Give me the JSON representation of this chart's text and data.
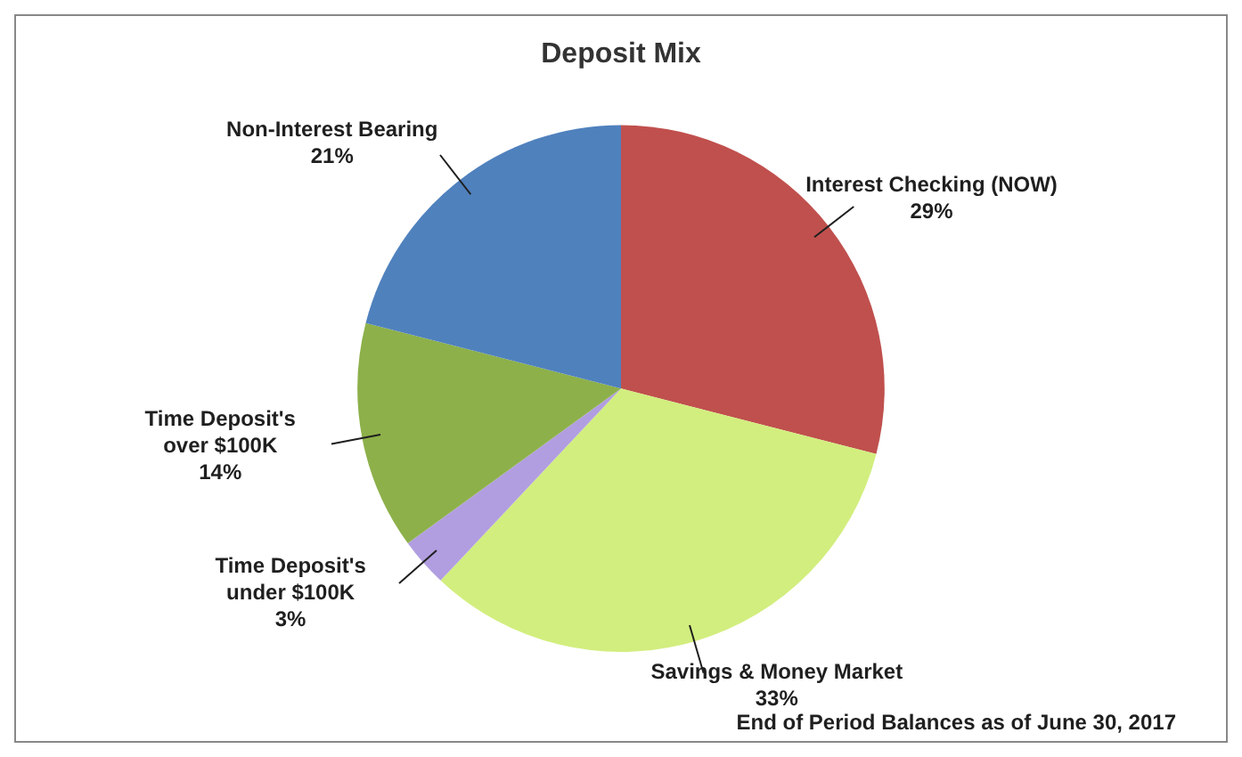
{
  "chart_data": {
    "type": "pie",
    "title": "Deposit Mix",
    "categories": [
      "Interest Checking (NOW)",
      "Savings & Money Market",
      "Time Deposit's under $100K",
      "Time Deposit's over $100K",
      "Non-Interest Bearing"
    ],
    "values": [
      29,
      33,
      3,
      14,
      21
    ],
    "value_labels": [
      "29%",
      "33%",
      "3%",
      "14%",
      "21%"
    ],
    "colors": [
      "#c0504d",
      "#d2ee7e",
      "#b19ee0",
      "#8db04a",
      "#4f81bd"
    ],
    "annotations": [
      "End of Period Balances as of June 30, 2017"
    ],
    "legend": false
  }
}
